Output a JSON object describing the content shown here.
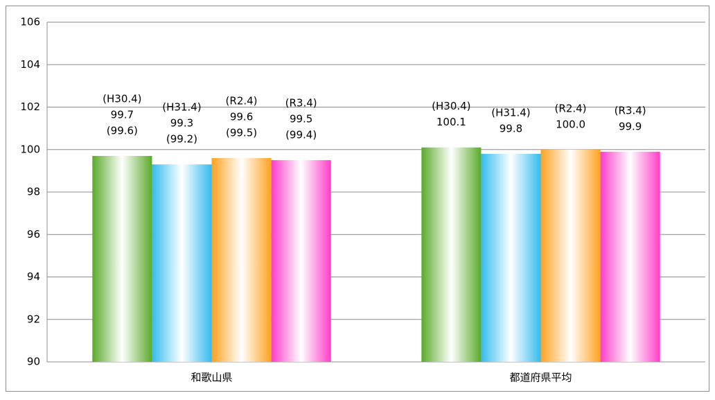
{
  "chart_data": {
    "type": "bar",
    "categories": [
      "和歌山県",
      "都道府県平均"
    ],
    "series": [
      {
        "name": "(H30.4)",
        "color": "#5aaa2a",
        "values": [
          99.7,
          100.1
        ],
        "secondary_values": [
          99.6,
          null
        ],
        "secondary_labels": [
          "(99.6)",
          null
        ]
      },
      {
        "name": "(H31.4)",
        "color": "#33bbee",
        "values": [
          99.3,
          99.8
        ],
        "secondary_values": [
          99.2,
          null
        ],
        "secondary_labels": [
          "(99.2)",
          null
        ]
      },
      {
        "name": "(R2.4)",
        "color": "#ffa11f",
        "values": [
          99.6,
          100.0
        ],
        "value_labels": [
          "99.6",
          "100.0"
        ],
        "secondary_values": [
          99.5,
          null
        ],
        "secondary_labels": [
          "(99.5)",
          null
        ]
      },
      {
        "name": "(R3.4)",
        "color": "#ff3dc8",
        "values": [
          99.5,
          99.9
        ],
        "secondary_values": [
          99.4,
          null
        ],
        "secondary_labels": [
          "(99.4)",
          null
        ]
      }
    ],
    "ylim": [
      90,
      106
    ],
    "yticks": [
      90,
      92,
      94,
      96,
      98,
      100,
      102,
      104,
      106
    ],
    "grid": true
  }
}
